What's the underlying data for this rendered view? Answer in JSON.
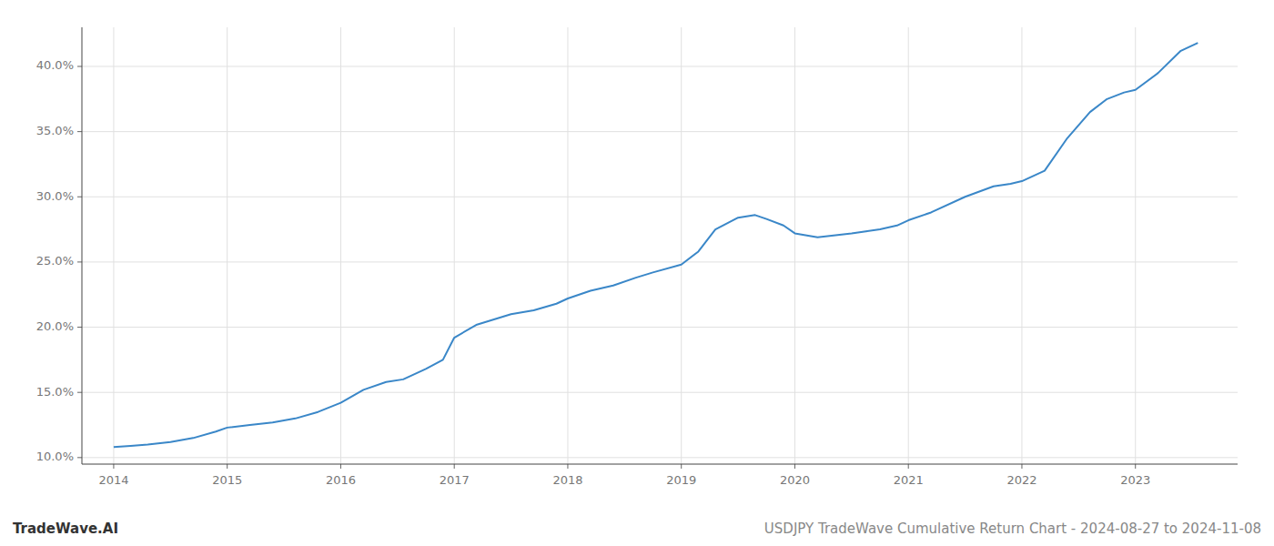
{
  "chart_data": {
    "type": "line",
    "title": "USDJPY TradeWave Cumulative Return Chart - 2024-08-27 to 2024-11-08",
    "annotations": [
      "TradeWave.AI"
    ],
    "color": "#3a87c8",
    "grid": true,
    "x": [
      2014.0,
      2014.15,
      2014.3,
      2014.5,
      2014.7,
      2014.9,
      2015.0,
      2015.2,
      2015.4,
      2015.6,
      2015.8,
      2016.0,
      2016.2,
      2016.4,
      2016.55,
      2016.75,
      2016.9,
      2017.0,
      2017.2,
      2017.5,
      2017.7,
      2017.9,
      2018.0,
      2018.2,
      2018.4,
      2018.6,
      2018.75,
      2019.0,
      2019.15,
      2019.3,
      2019.5,
      2019.65,
      2019.75,
      2019.9,
      2020.0,
      2020.2,
      2020.5,
      2020.75,
      2020.9,
      2021.0,
      2021.2,
      2021.5,
      2021.75,
      2021.9,
      2022.0,
      2022.2,
      2022.4,
      2022.6,
      2022.75,
      2022.9,
      2023.0,
      2023.2,
      2023.4,
      2023.55
    ],
    "values": [
      10.8,
      10.9,
      11.0,
      11.2,
      11.5,
      12.0,
      12.3,
      12.5,
      12.7,
      13.0,
      13.5,
      14.2,
      15.2,
      15.8,
      16.0,
      16.8,
      17.5,
      19.2,
      20.2,
      21.0,
      21.3,
      21.8,
      22.2,
      22.8,
      23.2,
      23.8,
      24.2,
      24.8,
      25.8,
      27.5,
      28.4,
      28.6,
      28.3,
      27.8,
      27.2,
      26.9,
      27.2,
      27.5,
      27.8,
      28.2,
      28.8,
      30.0,
      30.8,
      31.0,
      31.2,
      32.0,
      34.5,
      36.5,
      37.5,
      38.0,
      38.2,
      39.5,
      41.2,
      41.8
    ],
    "xlim": [
      2013.72,
      2023.9
    ],
    "ylim": [
      9.5,
      43.0
    ],
    "xticks": [
      2014,
      2015,
      2016,
      2017,
      2018,
      2019,
      2020,
      2021,
      2022,
      2023
    ],
    "yticks": [
      {
        "value": 10.0,
        "label": "10.0%"
      },
      {
        "value": 15.0,
        "label": "15.0%"
      },
      {
        "value": 20.0,
        "label": "20.0%"
      },
      {
        "value": 25.0,
        "label": "25.0%"
      },
      {
        "value": 30.0,
        "label": "30.0%"
      },
      {
        "value": 35.0,
        "label": "35.0%"
      },
      {
        "value": 40.0,
        "label": "40.0%"
      }
    ]
  }
}
